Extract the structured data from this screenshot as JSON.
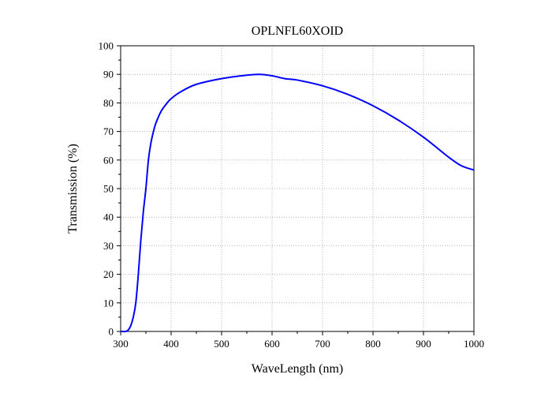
{
  "chart_data": {
    "type": "line",
    "title": "OPLNFL60XOID",
    "xlabel": "WaveLength (nm)",
    "ylabel": "Transmission (%)",
    "xlim": [
      300,
      1000
    ],
    "ylim": [
      0,
      100
    ],
    "xticks": [
      300,
      400,
      500,
      600,
      700,
      800,
      900,
      1000
    ],
    "yticks": [
      0,
      10,
      20,
      30,
      40,
      50,
      60,
      70,
      80,
      90,
      100
    ],
    "grid": true,
    "line_color": "#0000ff",
    "series": [
      {
        "x": [
          300,
          310,
          315,
          320,
          325,
          330,
          335,
          340,
          345,
          350,
          355,
          360,
          365,
          370,
          380,
          390,
          400,
          420,
          450,
          500,
          550,
          575,
          600,
          625,
          650,
          700,
          750,
          800,
          850,
          900,
          950,
          975,
          1000
        ],
        "y": [
          0,
          0,
          0.5,
          2,
          5,
          10,
          20,
          32,
          42,
          50,
          60,
          66,
          70,
          73,
          77,
          79.5,
          81.5,
          84,
          86.5,
          88.5,
          89.7,
          90,
          89.5,
          88.5,
          88,
          86,
          83,
          79,
          74,
          68,
          61,
          58,
          56.5
        ]
      }
    ]
  }
}
